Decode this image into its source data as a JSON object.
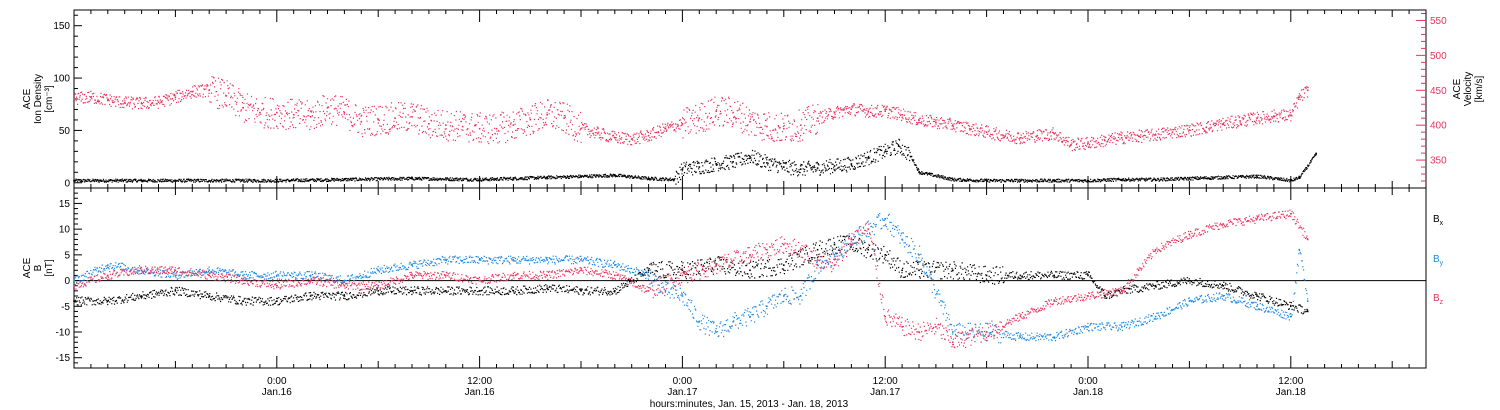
{
  "figure": {
    "xlabel": "hours:minutes, Jan. 15, 2013 - Jan. 18, 2013",
    "xlim_hours_since_start": [
      0,
      80
    ],
    "xticks": [
      {
        "hours": 12,
        "time": "0:00",
        "date": "Jan.16"
      },
      {
        "hours": 24,
        "time": "12:00",
        "date": "Jan.16"
      },
      {
        "hours": 36,
        "time": "0:00",
        "date": "Jan.17"
      },
      {
        "hours": 48,
        "time": "12:00",
        "date": "Jan.17"
      },
      {
        "hours": 60,
        "time": "0:00",
        "date": "Jan.18"
      },
      {
        "hours": 72,
        "time": "12:00",
        "date": "Jan.18"
      }
    ],
    "colors": {
      "black": "#000000",
      "blue": "#1e88e5",
      "red": "#e8345f"
    }
  },
  "chart_data": [
    {
      "type": "scatter",
      "panel": "top",
      "ylabel_left": [
        "ACE",
        "Ion Density",
        "[cm⁻³]"
      ],
      "ylabel_right": [
        "ACE",
        "Velocity",
        "[km/s]"
      ],
      "ylim": [
        -5,
        165
      ],
      "y2lim": [
        310,
        565
      ],
      "yticks": [
        0,
        50,
        100,
        150
      ],
      "y2ticks": [
        350,
        400,
        450,
        500,
        550
      ],
      "series": [
        {
          "axis": "left",
          "color": "black",
          "x": [
            0,
            4,
            8,
            12,
            16,
            20,
            24,
            26,
            28,
            30,
            32,
            34,
            35.5,
            36,
            37,
            38,
            39,
            40,
            41,
            42,
            43,
            44,
            45,
            46,
            47,
            48,
            48.8,
            49.5,
            50,
            52,
            54,
            56,
            58,
            60,
            62,
            64,
            66,
            68,
            70,
            72,
            72.5,
            73.5
          ],
          "y": [
            2,
            2,
            2,
            2,
            3,
            4,
            3,
            4,
            5,
            6,
            7,
            4,
            3,
            13,
            15,
            18,
            20,
            25,
            19,
            15,
            13,
            14,
            16,
            18,
            24,
            30,
            35,
            25,
            10,
            3,
            2,
            2,
            2,
            2,
            3,
            3,
            4,
            5,
            6,
            2,
            5,
            28
          ]
        },
        {
          "axis": "right",
          "color": "red",
          "x": [
            0,
            1,
            2,
            3,
            4,
            5,
            6,
            7,
            8,
            9,
            10,
            11,
            12,
            13,
            14,
            15,
            16,
            17,
            18,
            19,
            20,
            21,
            22,
            23,
            24,
            25,
            26,
            27,
            28,
            29,
            30,
            31,
            32,
            33,
            34,
            35,
            36,
            37,
            38,
            39,
            40,
            41,
            42,
            43,
            44,
            45,
            46,
            47,
            48,
            49,
            50,
            51,
            52,
            53,
            54,
            55,
            56,
            57,
            58,
            59,
            60,
            61,
            62,
            63,
            64,
            65,
            66,
            67,
            68,
            69,
            70,
            71,
            72,
            72.5,
            73
          ],
          "y": [
            438,
            440,
            436,
            432,
            431,
            433,
            440,
            448,
            450,
            442,
            425,
            418,
            418,
            415,
            412,
            425,
            418,
            405,
            408,
            410,
            412,
            402,
            400,
            398,
            395,
            395,
            400,
            408,
            415,
            410,
            395,
            388,
            382,
            380,
            385,
            395,
            402,
            410,
            420,
            418,
            405,
            398,
            395,
            400,
            410,
            418,
            423,
            420,
            420,
            415,
            407,
            404,
            400,
            395,
            390,
            385,
            382,
            385,
            388,
            372,
            374,
            378,
            382,
            384,
            386,
            390,
            393,
            397,
            402,
            406,
            410,
            413,
            414,
            440,
            450
          ]
        }
      ]
    },
    {
      "type": "scatter",
      "panel": "bottom",
      "ylabel_left": [
        "ACE",
        "B",
        "[nT]"
      ],
      "ylim": [
        -17,
        18
      ],
      "yticks": [
        -15,
        -10,
        -5,
        0,
        5,
        10,
        15
      ],
      "series": [
        {
          "name": "B",
          "subscript": "x",
          "color": "black",
          "x": [
            0,
            2,
            4,
            6,
            8,
            10,
            12,
            14,
            16,
            18,
            20,
            22,
            24,
            26,
            28,
            30,
            32,
            34,
            36,
            38,
            40,
            42,
            44,
            45,
            46,
            47,
            48,
            49,
            50,
            52,
            54,
            56,
            58,
            60,
            61,
            62,
            64,
            66,
            68,
            70,
            72,
            73
          ],
          "y": [
            -4,
            -4,
            -3,
            -2,
            -3,
            -4,
            -4,
            -3,
            -3,
            -2,
            -2,
            -2,
            -2,
            -2,
            -1.5,
            -2,
            -2,
            2,
            2,
            3,
            2,
            3,
            6,
            7,
            7,
            6,
            5,
            2,
            2,
            2,
            1,
            1,
            1,
            1,
            -3,
            -2,
            -1,
            0,
            -1,
            -3,
            -5,
            -6
          ]
        },
        {
          "name": "B",
          "subscript": "y",
          "color": "blue",
          "x": [
            0,
            2,
            4,
            6,
            8,
            10,
            12,
            14,
            16,
            18,
            20,
            22,
            24,
            26,
            28,
            30,
            32,
            34,
            35,
            36,
            37,
            38,
            39,
            40,
            41,
            42,
            43,
            44,
            45,
            46,
            47,
            48,
            49,
            50,
            52,
            54,
            56,
            58,
            60,
            62,
            64,
            66,
            68,
            70,
            72,
            72.5,
            73
          ],
          "y": [
            0,
            3,
            2,
            1,
            2,
            1,
            1,
            1,
            0,
            2,
            3,
            4,
            4,
            4,
            4,
            4,
            3,
            1,
            -2,
            -3,
            -8,
            -10,
            -8,
            -7,
            -5,
            -3,
            -3,
            3,
            5,
            8,
            10,
            12,
            8,
            5,
            -10,
            -10,
            -11,
            -11,
            -9,
            -9,
            -7,
            -4,
            -3,
            -5,
            -7,
            6,
            -4
          ]
        },
        {
          "name": "B",
          "subscript": "z",
          "color": "red",
          "x": [
            0,
            2,
            4,
            6,
            8,
            10,
            12,
            14,
            16,
            18,
            20,
            22,
            24,
            26,
            28,
            30,
            32,
            34,
            36,
            38,
            40,
            41,
            42,
            43,
            44,
            45,
            46,
            47,
            48,
            49,
            50,
            51,
            52,
            54,
            56,
            58,
            60,
            62,
            63,
            64,
            66,
            68,
            70,
            72,
            73
          ],
          "y": [
            -1,
            1,
            2,
            2,
            1,
            0,
            -1,
            0,
            -1,
            -1,
            1,
            1,
            0,
            1,
            1,
            2,
            1,
            -2,
            1,
            3,
            5,
            6,
            7,
            6,
            4,
            3,
            8,
            10,
            -7,
            -9,
            -10,
            -9,
            -12,
            -10,
            -7,
            -4,
            -3,
            -2,
            2,
            6,
            9,
            11,
            12,
            13,
            8
          ]
        }
      ]
    }
  ]
}
